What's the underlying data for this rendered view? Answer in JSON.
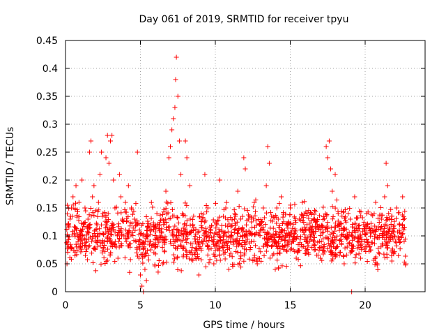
{
  "chart_data": {
    "type": "scatter",
    "title": "Day 061 of 2019, SRMTID for receiver tpyu",
    "xlabel": "GPS time / hours",
    "ylabel": "SRMTID / TECUs",
    "xlim": [
      0,
      24
    ],
    "ylim": [
      0,
      0.45
    ],
    "grid": true,
    "xticks": [
      0,
      5,
      10,
      15,
      20
    ],
    "xtick_labels": [
      "0",
      "5",
      "10",
      "15",
      "20"
    ],
    "yticks": [
      0,
      0.05,
      0.1,
      0.15,
      0.2,
      0.25,
      0.3,
      0.35,
      0.4,
      0.45
    ],
    "ytick_labels": [
      "0",
      "0.05",
      "0.1",
      "0.15",
      "0.2",
      "0.25",
      "0.3",
      "0.35",
      "0.4",
      "0.45"
    ],
    "marker": "+",
    "color": "#ff0000",
    "series": [
      {
        "name": "SRMTID",
        "points": [
          [
            0.1,
            0.05
          ],
          [
            0.2,
            0.08
          ],
          [
            0.3,
            0.13
          ],
          [
            0.4,
            0.15
          ],
          [
            0.5,
            0.17
          ],
          [
            0.6,
            0.11
          ],
          [
            0.7,
            0.19
          ],
          [
            0.8,
            0.1
          ],
          [
            0.9,
            0.16
          ],
          [
            1.0,
            0.08
          ],
          [
            1.1,
            0.2
          ],
          [
            1.2,
            0.12
          ],
          [
            1.3,
            0.15
          ],
          [
            1.4,
            0.09
          ],
          [
            1.5,
            0.13
          ],
          [
            1.6,
            0.25
          ],
          [
            1.7,
            0.27
          ],
          [
            1.8,
            0.17
          ],
          [
            1.9,
            0.19
          ],
          [
            2.0,
            0.1
          ],
          [
            2.1,
            0.12
          ],
          [
            2.2,
            0.16
          ],
          [
            2.3,
            0.21
          ],
          [
            2.4,
            0.25
          ],
          [
            2.5,
            0.14
          ],
          [
            2.6,
            0.09
          ],
          [
            2.7,
            0.24
          ],
          [
            2.8,
            0.28
          ],
          [
            2.9,
            0.23
          ],
          [
            3.0,
            0.27
          ],
          [
            3.1,
            0.28
          ],
          [
            3.2,
            0.2
          ],
          [
            3.3,
            0.15
          ],
          [
            3.4,
            0.08
          ],
          [
            3.5,
            0.06
          ],
          [
            3.6,
            0.21
          ],
          [
            3.7,
            0.17
          ],
          [
            3.8,
            0.13
          ],
          [
            3.9,
            0.1
          ],
          [
            4.0,
            0.16
          ],
          [
            4.2,
            0.19
          ],
          [
            4.4,
            0.15
          ],
          [
            4.6,
            0.13
          ],
          [
            4.8,
            0.25
          ],
          [
            4.9,
            0.06
          ],
          [
            5.0,
            0.03
          ],
          [
            5.1,
            0.01
          ],
          [
            5.2,
            0.0
          ],
          [
            5.3,
            0.04
          ],
          [
            5.4,
            0.02
          ],
          [
            5.5,
            0.09
          ],
          [
            5.7,
            0.12
          ],
          [
            5.9,
            0.07
          ],
          [
            6.1,
            0.14
          ],
          [
            6.3,
            0.1
          ],
          [
            6.5,
            0.05
          ],
          [
            6.7,
            0.18
          ],
          [
            6.9,
            0.24
          ],
          [
            7.0,
            0.26
          ],
          [
            7.1,
            0.29
          ],
          [
            7.2,
            0.31
          ],
          [
            7.3,
            0.33
          ],
          [
            7.35,
            0.38
          ],
          [
            7.4,
            0.42
          ],
          [
            7.5,
            0.35
          ],
          [
            7.6,
            0.27
          ],
          [
            7.7,
            0.21
          ],
          [
            7.8,
            0.14
          ],
          [
            7.9,
            0.08
          ],
          [
            8.0,
            0.27
          ],
          [
            8.1,
            0.24
          ],
          [
            8.3,
            0.19
          ],
          [
            8.5,
            0.12
          ],
          [
            8.7,
            0.06
          ],
          [
            8.9,
            0.03
          ],
          [
            9.1,
            0.09
          ],
          [
            9.3,
            0.21
          ],
          [
            9.5,
            0.15
          ],
          [
            9.7,
            0.11
          ],
          [
            9.9,
            0.05
          ],
          [
            10.1,
            0.12
          ],
          [
            10.3,
            0.2
          ],
          [
            10.5,
            0.08
          ],
          [
            10.7,
            0.15
          ],
          [
            10.9,
            0.04
          ],
          [
            11.1,
            0.1
          ],
          [
            11.3,
            0.14
          ],
          [
            11.5,
            0.18
          ],
          [
            11.7,
            0.07
          ],
          [
            11.9,
            0.24
          ],
          [
            12.0,
            0.22
          ],
          [
            12.2,
            0.13
          ],
          [
            12.4,
            0.09
          ],
          [
            12.6,
            0.16
          ],
          [
            12.8,
            0.05
          ],
          [
            13.0,
            0.11
          ],
          [
            13.2,
            0.15
          ],
          [
            13.4,
            0.19
          ],
          [
            13.5,
            0.26
          ],
          [
            13.6,
            0.23
          ],
          [
            13.8,
            0.1
          ],
          [
            14.0,
            0.04
          ],
          [
            14.2,
            0.13
          ],
          [
            14.4,
            0.17
          ],
          [
            14.6,
            0.08
          ],
          [
            14.8,
            0.12
          ],
          [
            15.0,
            0.15
          ],
          [
            15.2,
            0.09
          ],
          [
            15.4,
            0.06
          ],
          [
            15.6,
            0.13
          ],
          [
            15.8,
            0.16
          ],
          [
            16.0,
            0.11
          ],
          [
            16.2,
            0.07
          ],
          [
            16.4,
            0.14
          ],
          [
            16.6,
            0.09
          ],
          [
            16.8,
            0.12
          ],
          [
            17.0,
            0.06
          ],
          [
            17.2,
            0.08
          ],
          [
            17.4,
            0.26
          ],
          [
            17.5,
            0.24
          ],
          [
            17.6,
            0.27
          ],
          [
            17.7,
            0.22
          ],
          [
            17.8,
            0.18
          ],
          [
            18.0,
            0.21
          ],
          [
            18.2,
            0.14
          ],
          [
            18.4,
            0.1
          ],
          [
            18.6,
            0.05
          ],
          [
            18.8,
            0.08
          ],
          [
            19.0,
            0.13
          ],
          [
            19.1,
            0.0
          ],
          [
            19.3,
            0.17
          ],
          [
            19.5,
            0.09
          ],
          [
            19.7,
            0.06
          ],
          [
            19.9,
            0.12
          ],
          [
            20.1,
            0.14
          ],
          [
            20.3,
            0.08
          ],
          [
            20.5,
            0.11
          ],
          [
            20.7,
            0.16
          ],
          [
            20.9,
            0.07
          ],
          [
            21.1,
            0.13
          ],
          [
            21.3,
            0.17
          ],
          [
            21.4,
            0.23
          ],
          [
            21.5,
            0.19
          ],
          [
            21.7,
            0.1
          ],
          [
            21.9,
            0.07
          ],
          [
            22.1,
            0.15
          ],
          [
            22.3,
            0.12
          ],
          [
            22.5,
            0.17
          ],
          [
            22.6,
            0.09
          ],
          [
            22.7,
            0.05
          ]
        ],
        "noise_cloud": {
          "x_range": [
            0.05,
            22.7
          ],
          "y_center": 0.1,
          "y_spread": 0.045,
          "count": 1500
        }
      }
    ]
  }
}
